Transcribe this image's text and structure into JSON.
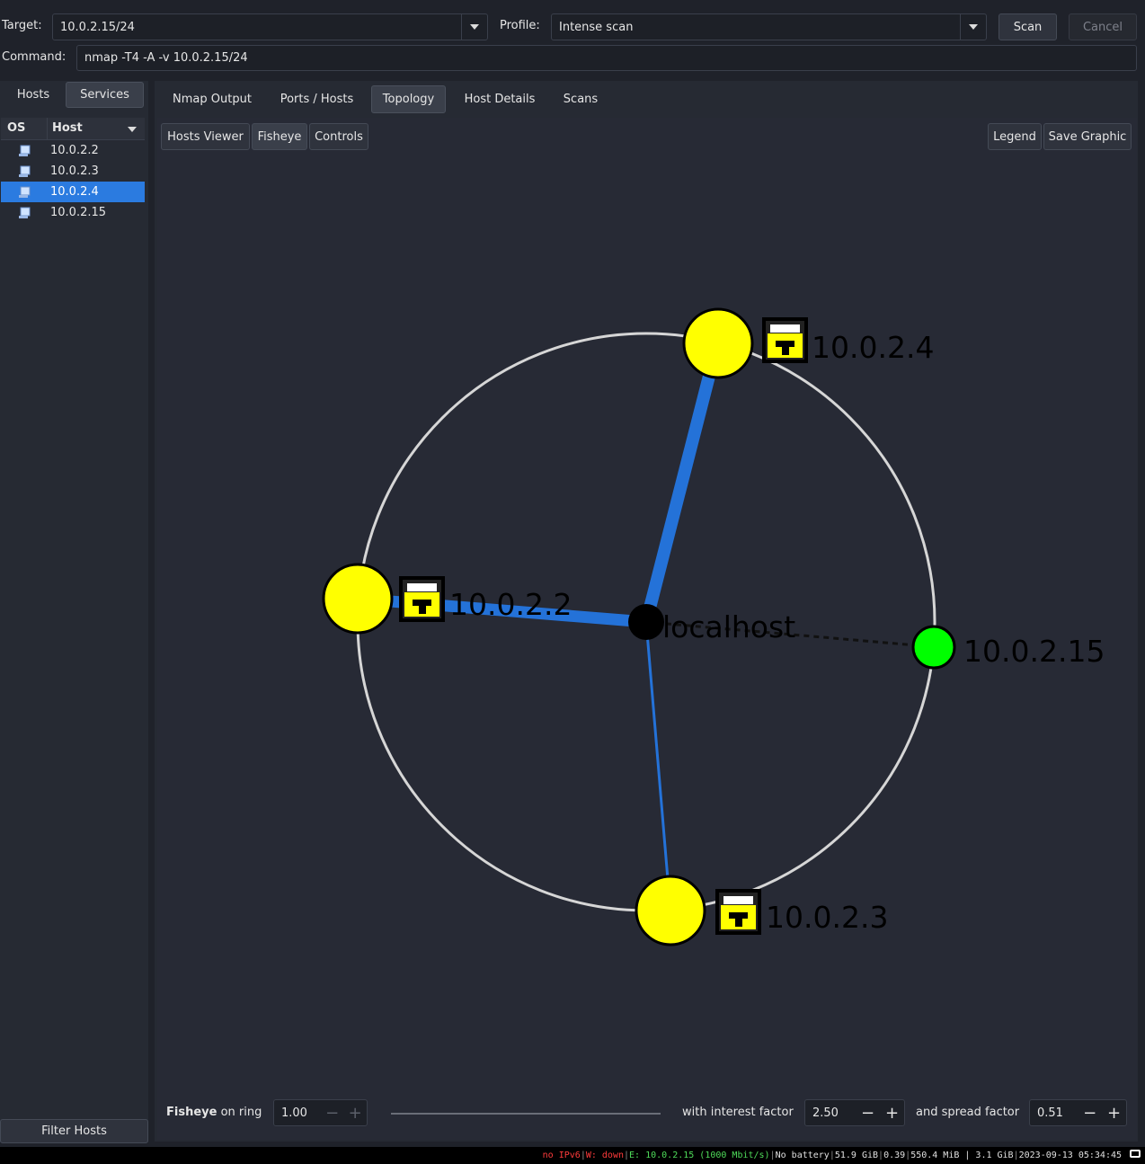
{
  "toolbar": {
    "target_label": "Target:",
    "target_value": "10.0.2.15/24",
    "profile_label": "Profile:",
    "profile_value": "Intense scan",
    "scan_label": "Scan",
    "cancel_label": "Cancel",
    "command_label": "Command:",
    "command_value": "nmap -T4 -A -v 10.0.2.15/24"
  },
  "sidebar": {
    "tabs": [
      "Hosts",
      "Services"
    ],
    "col_os": "OS",
    "col_host": "Host",
    "hosts": [
      {
        "ip": "10.0.2.2",
        "selected": false
      },
      {
        "ip": "10.0.2.3",
        "selected": false
      },
      {
        "ip": "10.0.2.4",
        "selected": true
      },
      {
        "ip": "10.0.2.15",
        "selected": false
      }
    ],
    "filter_label": "Filter Hosts"
  },
  "main_tabs": [
    "Nmap Output",
    "Ports / Hosts",
    "Topology",
    "Host Details",
    "Scans"
  ],
  "active_tab": "Topology",
  "topology": {
    "toolbar": {
      "hosts_viewer": "Hosts Viewer",
      "fisheye": "Fisheye",
      "controls": "Controls",
      "legend": "Legend",
      "save_graphic": "Save Graphic"
    },
    "center_label": "localhost",
    "nodes": [
      {
        "label": "10.0.2.4",
        "color": "#ffff00"
      },
      {
        "label": "10.0.2.2",
        "color": "#ffff00"
      },
      {
        "label": "10.0.2.15",
        "color": "#00ff00"
      },
      {
        "label": "10.0.2.3",
        "color": "#ffff00"
      }
    ],
    "link_color": "#2472d8",
    "ring_color": "#d6d6d6"
  },
  "fisheye_bar": {
    "bold_label": "Fisheye",
    "on_ring_label": "on ring",
    "ring_value": "1.00",
    "interest_label": "with interest factor",
    "interest_value": "2.50",
    "spread_label": "and spread factor",
    "spread_value": "0.51"
  },
  "statusbar": {
    "ipv6": "no IPv6",
    "wifi": "W: down",
    "eth": "E: 10.0.2.15 (1000 Mbit/s)",
    "battery": "No battery",
    "disk": "51.9 GiB",
    "load": "0.39",
    "mem": "550.4 MiB | 3.1 GiB",
    "datetime": "2023-09-13 05:34:45"
  }
}
